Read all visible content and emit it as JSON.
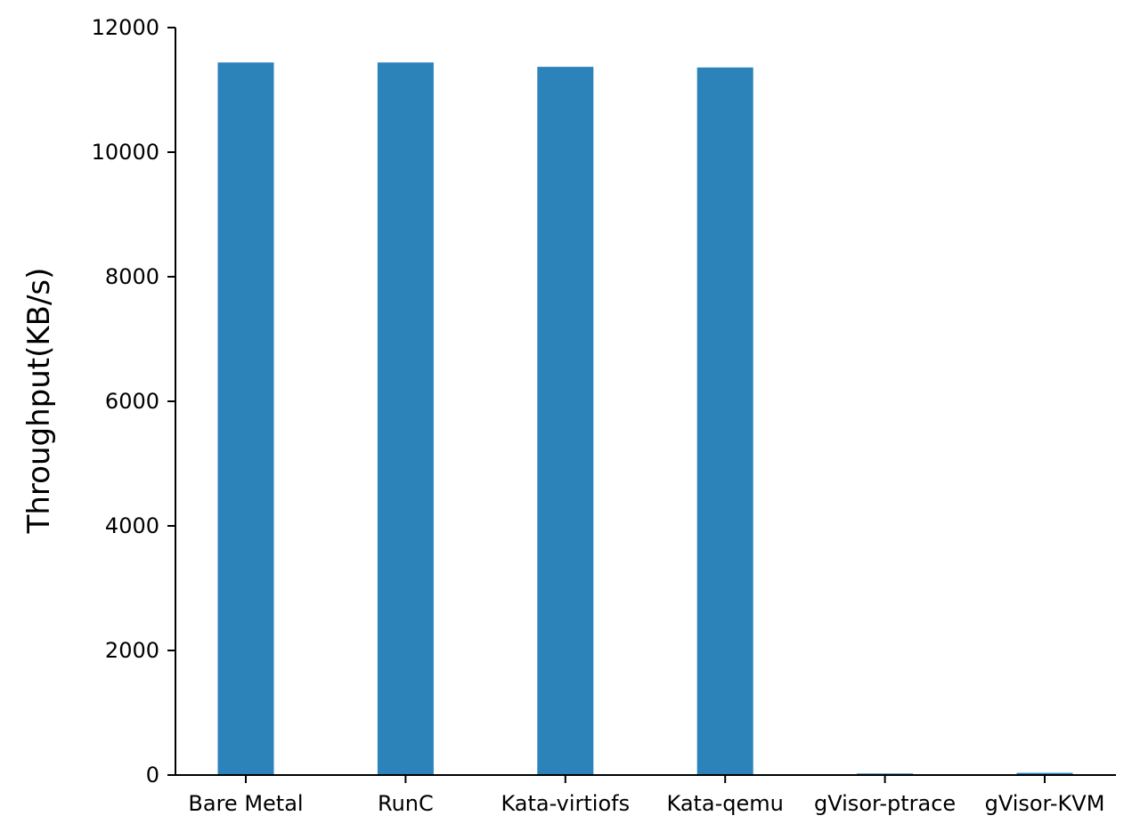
{
  "chart_data": {
    "type": "bar",
    "title": "",
    "xlabel": "",
    "ylabel": "Throughput(KB/s)",
    "categories": [
      "Bare Metal",
      "RunC",
      "Kata-virtiofs",
      "Kata-qemu",
      "gVisor-ptrace",
      "gVisor-KVM"
    ],
    "values": [
      11440,
      11440,
      11370,
      11360,
      25,
      35
    ],
    "ylim": [
      0,
      12000
    ],
    "yticks": [
      0,
      2000,
      4000,
      6000,
      8000,
      10000,
      12000
    ],
    "bar_color": "#2b83ba",
    "grid": false,
    "legend": "none"
  }
}
